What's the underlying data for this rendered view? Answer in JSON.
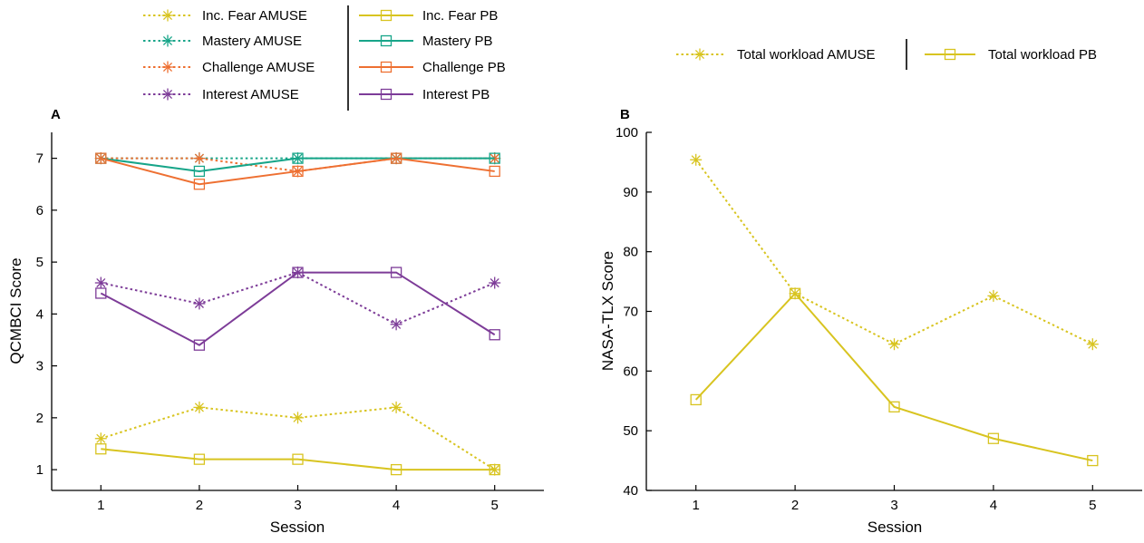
{
  "chart_data": [
    {
      "panel": "A",
      "type": "line",
      "xlabel": "Session",
      "ylabel": "QCMBCI Score",
      "x": [
        1,
        2,
        3,
        4,
        5
      ],
      "xlim": [
        0.5,
        5.5
      ],
      "ylim": [
        0.6,
        7.5
      ],
      "yticks": [
        1,
        2,
        3,
        4,
        5,
        6,
        7
      ],
      "series": [
        {
          "name": "Inc. Fear AMUSE",
          "color": "#d8c420",
          "style": "dotted",
          "marker": "asterisk",
          "values": [
            1.6,
            2.2,
            2.0,
            2.2,
            1.0
          ]
        },
        {
          "name": "Mastery AMUSE",
          "color": "#17a589",
          "style": "dotted",
          "marker": "asterisk",
          "values": [
            7.0,
            7.0,
            7.0,
            7.0,
            7.0
          ]
        },
        {
          "name": "Challenge AMUSE",
          "color": "#ee7032",
          "style": "dotted",
          "marker": "asterisk",
          "values": [
            7.0,
            7.0,
            6.75,
            7.0,
            7.0
          ]
        },
        {
          "name": "Interest AMUSE",
          "color": "#7d3c98",
          "style": "dotted",
          "marker": "asterisk",
          "values": [
            4.6,
            4.2,
            4.8,
            3.8,
            4.6
          ]
        },
        {
          "name": "Inc. Fear PB",
          "color": "#d8c420",
          "style": "solid",
          "marker": "square",
          "values": [
            1.4,
            1.2,
            1.2,
            1.0,
            1.0
          ]
        },
        {
          "name": "Mastery PB",
          "color": "#17a589",
          "style": "solid",
          "marker": "square",
          "values": [
            7.0,
            6.75,
            7.0,
            7.0,
            7.0
          ]
        },
        {
          "name": "Challenge PB",
          "color": "#ee7032",
          "style": "solid",
          "marker": "square",
          "values": [
            7.0,
            6.5,
            6.75,
            7.0,
            6.75
          ]
        },
        {
          "name": "Interest PB",
          "color": "#7d3c98",
          "style": "solid",
          "marker": "square",
          "values": [
            4.4,
            3.4,
            4.8,
            4.8,
            3.6
          ]
        }
      ]
    },
    {
      "panel": "B",
      "type": "line",
      "xlabel": "Session",
      "ylabel": "NASA-TLX Score",
      "x": [
        1,
        2,
        3,
        4,
        5
      ],
      "xlim": [
        0.5,
        5.5
      ],
      "ylim": [
        40,
        100
      ],
      "yticks": [
        40,
        50,
        60,
        70,
        80,
        90,
        100
      ],
      "series": [
        {
          "name": "Total workload AMUSE",
          "color": "#d8c420",
          "style": "dotted",
          "marker": "asterisk",
          "values": [
            95.4,
            73.0,
            64.5,
            72.6,
            64.5
          ]
        },
        {
          "name": "Total workload PB",
          "color": "#d8c420",
          "style": "solid",
          "marker": "square",
          "values": [
            55.2,
            73.0,
            54.0,
            48.7,
            45.0
          ]
        }
      ]
    }
  ]
}
